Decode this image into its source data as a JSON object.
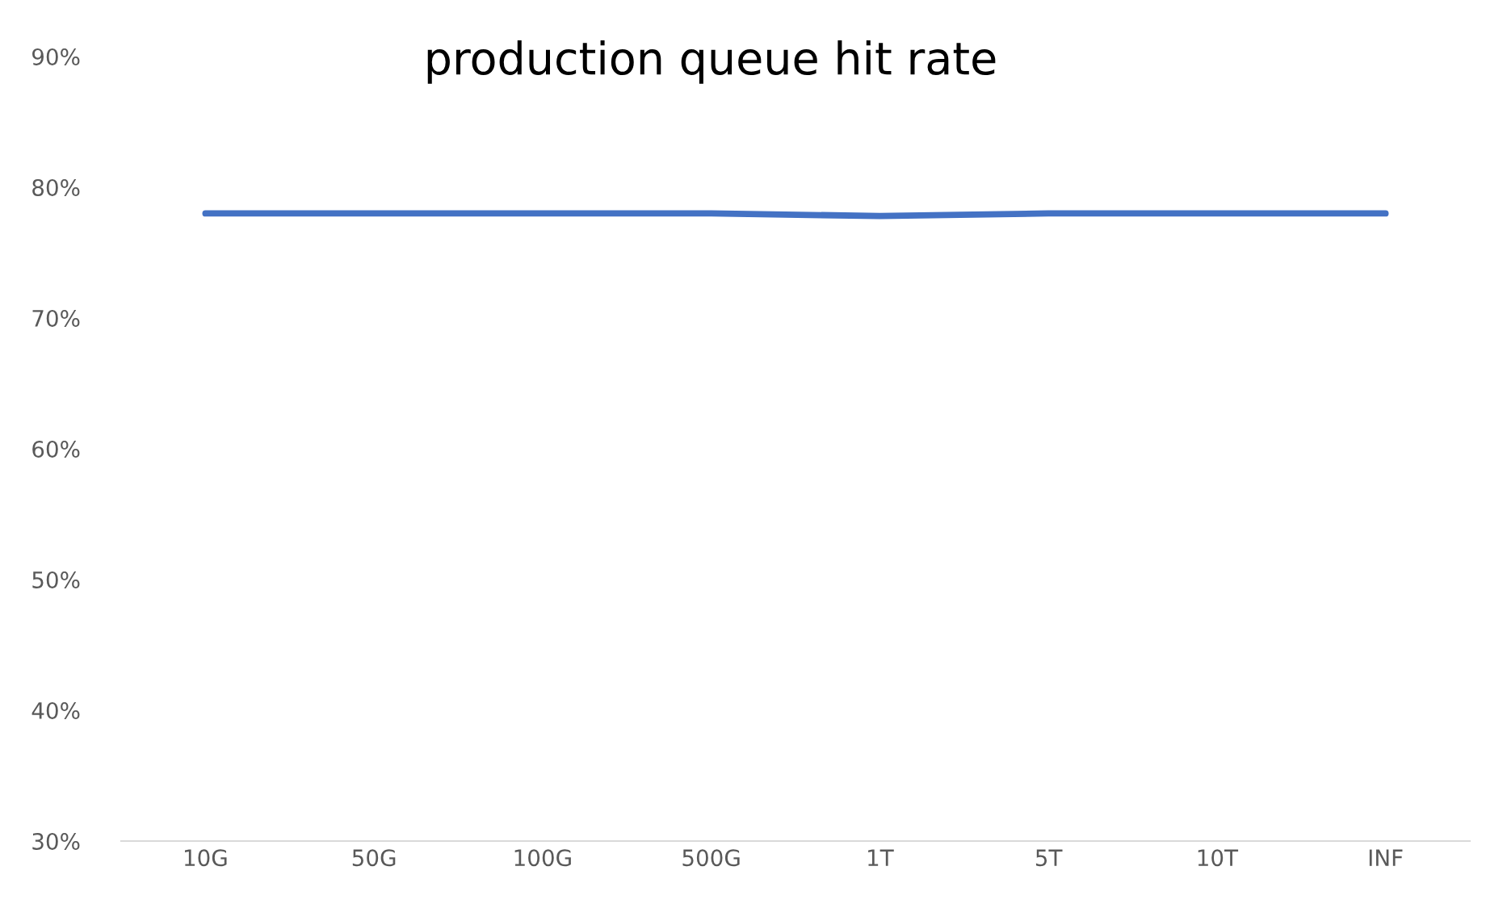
{
  "chart_data": {
    "type": "line",
    "title": "production queue hit rate",
    "categories": [
      "10G",
      "50G",
      "100G",
      "500G",
      "1T",
      "5T",
      "10T",
      "INF"
    ],
    "series": [
      {
        "color": "#4472c4",
        "values": [
          78,
          78,
          78,
          78,
          77.8,
          78,
          78,
          78
        ]
      }
    ],
    "ylim": [
      30,
      90
    ],
    "yticks": [
      {
        "value": 30,
        "label": "30%"
      },
      {
        "value": 40,
        "label": "40%"
      },
      {
        "value": 50,
        "label": "50%"
      },
      {
        "value": 60,
        "label": "60%"
      },
      {
        "value": 70,
        "label": "70%"
      },
      {
        "value": 80,
        "label": "80%"
      },
      {
        "value": 90,
        "label": "90%"
      }
    ],
    "line_style": "solid",
    "marker": "none"
  }
}
